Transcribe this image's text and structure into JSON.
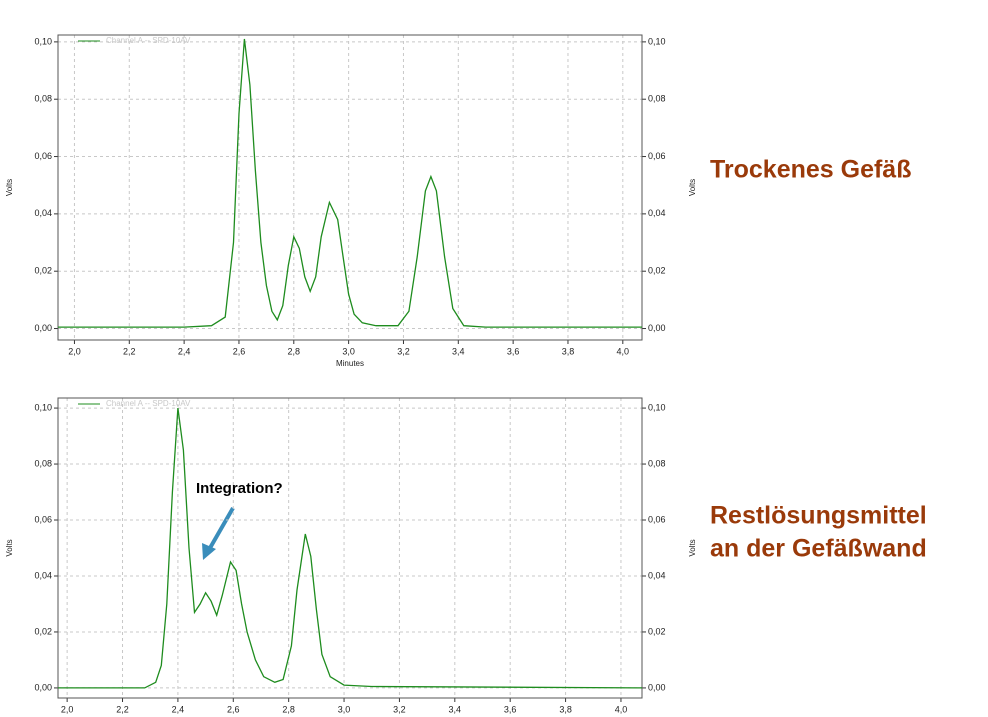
{
  "chart_data": [
    {
      "type": "line",
      "caption": [
        "Trockenes Gefäß"
      ],
      "ylabel": "Volts",
      "y2label": "Volts",
      "xlabel": "Minutes",
      "xlim": [
        1.94,
        4.07
      ],
      "ylim": [
        -0.004,
        0.1024
      ],
      "y2lim": [
        -0.004,
        0.1024
      ],
      "grid": true,
      "xticks": [
        {
          "value": 2.0,
          "label": "2,0"
        },
        {
          "value": 2.2,
          "label": "2,2"
        },
        {
          "value": 2.4,
          "label": "2,4"
        },
        {
          "value": 2.6,
          "label": "2,6"
        },
        {
          "value": 2.8,
          "label": "2,8"
        },
        {
          "value": 3.0,
          "label": "3,0"
        },
        {
          "value": 3.2,
          "label": "3,2"
        },
        {
          "value": 3.4,
          "label": "3,4"
        },
        {
          "value": 3.6,
          "label": "3,6"
        },
        {
          "value": 3.8,
          "label": "3,8"
        },
        {
          "value": 4.0,
          "label": "4,0"
        }
      ],
      "yticks": [
        {
          "value": 0,
          "label": "0,00"
        },
        {
          "value": 0.02,
          "label": "0,02"
        },
        {
          "value": 0.04,
          "label": "0,04"
        },
        {
          "value": 0.06,
          "label": "0,06"
        },
        {
          "value": 0.08,
          "label": "0,08"
        },
        {
          "value": 0.1,
          "label": "0,10"
        }
      ],
      "y2ticks": [
        {
          "value": 0,
          "label": "0,00"
        },
        {
          "value": 0.02,
          "label": "0,02"
        },
        {
          "value": 0.04,
          "label": "0,04"
        },
        {
          "value": 0.06,
          "label": "0,06"
        },
        {
          "value": 0.08,
          "label": "0,08"
        },
        {
          "value": 0.1,
          "label": "0,10"
        }
      ],
      "x": [
        1.94,
        2.4,
        2.5,
        2.55,
        2.58,
        2.6,
        2.62,
        2.64,
        2.66,
        2.68,
        2.7,
        2.72,
        2.74,
        2.76,
        2.78,
        2.8,
        2.82,
        2.84,
        2.86,
        2.88,
        2.9,
        2.93,
        2.96,
        2.98,
        3.0,
        3.02,
        3.05,
        3.1,
        3.18,
        3.22,
        3.25,
        3.28,
        3.3,
        3.32,
        3.35,
        3.38,
        3.42,
        3.5,
        4.07
      ],
      "series": [
        {
          "name": "Channel A -- SPD-10AV",
          "color": "#1e8c1e",
          "values": [
            0.0005,
            0.0005,
            0.001,
            0.004,
            0.03,
            0.075,
            0.101,
            0.085,
            0.055,
            0.03,
            0.015,
            0.006,
            0.003,
            0.008,
            0.022,
            0.032,
            0.028,
            0.018,
            0.013,
            0.018,
            0.032,
            0.044,
            0.038,
            0.025,
            0.012,
            0.005,
            0.002,
            0.001,
            0.001,
            0.006,
            0.025,
            0.048,
            0.053,
            0.048,
            0.025,
            0.007,
            0.001,
            0.0005,
            0.0005
          ]
        }
      ]
    },
    {
      "type": "line",
      "caption": [
        "Restlösungsmittel",
        "an der Gefäßwand"
      ],
      "ylabel": "Volts",
      "y2label": "Volts",
      "annotations": [
        "Integration?"
      ],
      "xlim": [
        1.967,
        4.076
      ],
      "ylim": [
        -0.0036,
        0.1036
      ],
      "y2lim": [
        -0.0036,
        0.1036
      ],
      "grid": true,
      "xticks": [
        {
          "value": 2.0,
          "label": "2,0"
        },
        {
          "value": 2.2,
          "label": "2,2"
        },
        {
          "value": 2.4,
          "label": "2,4"
        },
        {
          "value": 2.6,
          "label": "2,6"
        },
        {
          "value": 2.8,
          "label": "2,8"
        },
        {
          "value": 3.0,
          "label": "3,0"
        },
        {
          "value": 3.2,
          "label": "3,2"
        },
        {
          "value": 3.4,
          "label": "3,4"
        },
        {
          "value": 3.6,
          "label": "3,6"
        },
        {
          "value": 3.8,
          "label": "3,8"
        },
        {
          "value": 4.0,
          "label": "4,0"
        }
      ],
      "yticks": [
        {
          "value": 0,
          "label": "0,00"
        },
        {
          "value": 0.02,
          "label": "0,02"
        },
        {
          "value": 0.04,
          "label": "0,04"
        },
        {
          "value": 0.06,
          "label": "0,06"
        },
        {
          "value": 0.08,
          "label": "0,08"
        },
        {
          "value": 0.1,
          "label": "0,10"
        }
      ],
      "y2ticks": [
        {
          "value": 0,
          "label": "0,00"
        },
        {
          "value": 0.02,
          "label": "0,02"
        },
        {
          "value": 0.04,
          "label": "0,04"
        },
        {
          "value": 0.06,
          "label": "0,06"
        },
        {
          "value": 0.08,
          "label": "0,08"
        },
        {
          "value": 0.1,
          "label": "0,10"
        }
      ],
      "x": [
        1.967,
        2.28,
        2.32,
        2.34,
        2.36,
        2.38,
        2.4,
        2.42,
        2.44,
        2.46,
        2.48,
        2.5,
        2.52,
        2.54,
        2.56,
        2.59,
        2.61,
        2.63,
        2.65,
        2.68,
        2.71,
        2.75,
        2.78,
        2.81,
        2.83,
        2.86,
        2.88,
        2.9,
        2.92,
        2.95,
        3.0,
        3.1,
        4.076
      ],
      "series": [
        {
          "name": "Channel A -- SPD-10AV",
          "color": "#1e8c1e",
          "values": [
            0,
            0,
            0.002,
            0.008,
            0.03,
            0.07,
            0.1,
            0.085,
            0.05,
            0.027,
            0.03,
            0.034,
            0.031,
            0.026,
            0.033,
            0.045,
            0.042,
            0.03,
            0.02,
            0.01,
            0.004,
            0.002,
            0.003,
            0.015,
            0.035,
            0.055,
            0.047,
            0.028,
            0.012,
            0.004,
            0.001,
            0.0005,
            0
          ]
        }
      ]
    }
  ]
}
